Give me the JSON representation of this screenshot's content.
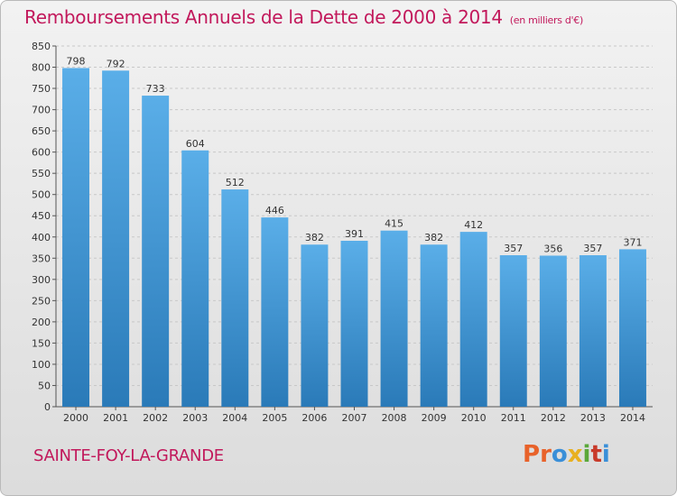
{
  "header": {
    "title": "Remboursements Annuels de la Dette de 2000 à 2014",
    "subtitle": "(en milliers d'€)"
  },
  "footer": {
    "commune": "SAINTE-FOY-LA-GRANDE",
    "logo_letters": [
      "P",
      "r",
      "o",
      "x",
      "i",
      "t",
      "i"
    ],
    "logo_colors": [
      "#e8622a",
      "#e8622a",
      "#3a8fd8",
      "#e8b020",
      "#5aa83a",
      "#c83a2a",
      "#3a8fd8"
    ]
  },
  "colors": {
    "bar_top": "#5aaee8",
    "bar_bottom": "#2a7ab8",
    "title": "#c2185b",
    "grid": "#c8c8c8"
  },
  "chart_data": {
    "type": "bar",
    "title": "Remboursements Annuels de la Dette de 2000 à 2014",
    "subtitle": "(en milliers d'€)",
    "categories": [
      "2000",
      "2001",
      "2002",
      "2003",
      "2004",
      "2005",
      "2006",
      "2007",
      "2008",
      "2009",
      "2010",
      "2011",
      "2012",
      "2013",
      "2014"
    ],
    "values": [
      798,
      792,
      733,
      604,
      512,
      446,
      382,
      391,
      415,
      382,
      412,
      357,
      356,
      357,
      371
    ],
    "ylim": [
      0,
      850
    ],
    "yticks": [
      0,
      50,
      100,
      150,
      200,
      250,
      300,
      350,
      400,
      450,
      500,
      550,
      600,
      650,
      700,
      750,
      800,
      850
    ],
    "grid": true,
    "xlabel": "",
    "ylabel": ""
  }
}
